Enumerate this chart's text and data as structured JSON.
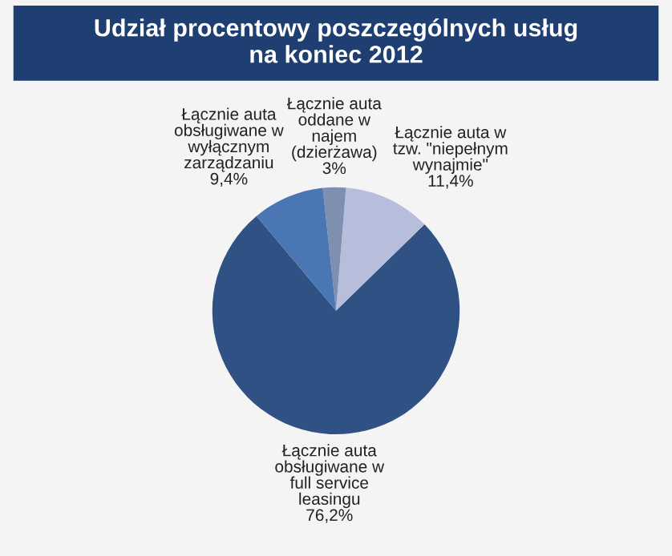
{
  "chart_data": {
    "type": "pie",
    "title": "Udział procentowy poszczególnych usług\nna koniec 2012",
    "categories": [
      "Łącznie auta\nobsługiwane w\nfull service\nleasingu",
      "Łącznie auta w\ntzw. \"niepełnym\nwynajmie\"",
      "Łącznie auta\noddane w\nnajem\n(dzierżawa)",
      "Łącznie auta\nobsługiwane w\nwyłącznym\nzarządzaniu"
    ],
    "values": [
      76.2,
      11.4,
      3,
      9.4
    ],
    "value_labels": [
      "76,2%",
      "11,4%",
      "3%",
      "9,4%"
    ],
    "colors": [
      "#2f5183",
      "#b7bedb",
      "#7f8fb0",
      "#4a76b4"
    ],
    "legend": false
  }
}
